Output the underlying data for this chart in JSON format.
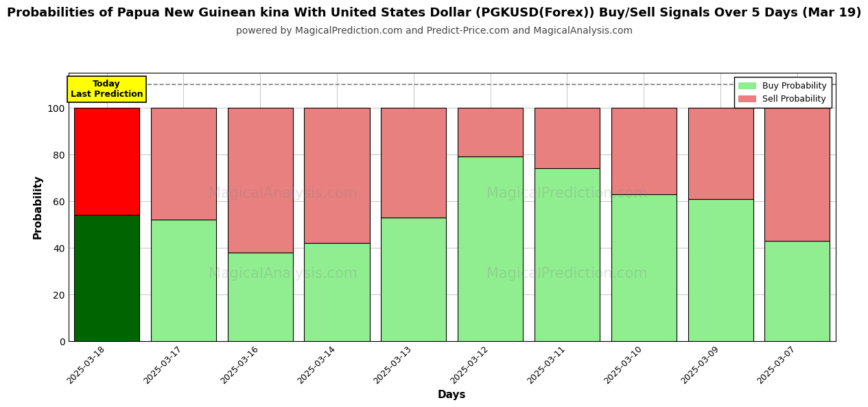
{
  "title": "Probabilities of Papua New Guinean kina With United States Dollar (PGKUSD(Forex)) Buy/Sell Signals Over 5 Days (Mar 19)",
  "subtitle": "powered by MagicalPrediction.com and Predict-Price.com and MagicalAnalysis.com",
  "xlabel": "Days",
  "ylabel": "Probability",
  "categories": [
    "2025-03-18",
    "2025-03-17",
    "2025-03-16",
    "2025-03-14",
    "2025-03-13",
    "2025-03-12",
    "2025-03-11",
    "2025-03-10",
    "2025-03-09",
    "2025-03-07"
  ],
  "buy_values": [
    54,
    52,
    38,
    42,
    53,
    79,
    74,
    63,
    61,
    43
  ],
  "sell_values": [
    46,
    48,
    62,
    58,
    47,
    21,
    26,
    37,
    39,
    57
  ],
  "today_buy_color": "#006400",
  "today_sell_color": "#ff0000",
  "buy_color": "#90EE90",
  "sell_color": "#E88080",
  "bar_edgecolor": "#000000",
  "today_label_bg": "#ffff00",
  "today_label_text": "Today\nLast Prediction",
  "legend_buy": "Buy Probability",
  "legend_sell": "Sell Probability",
  "ylim": [
    0,
    115
  ],
  "yticks": [
    0,
    20,
    40,
    60,
    80,
    100
  ],
  "dashed_line_y": 110,
  "fig_width": 12,
  "fig_height": 6,
  "bg_color": "#ffffff",
  "grid_color": "#bbbbbb",
  "title_fontsize": 13,
  "subtitle_fontsize": 10
}
